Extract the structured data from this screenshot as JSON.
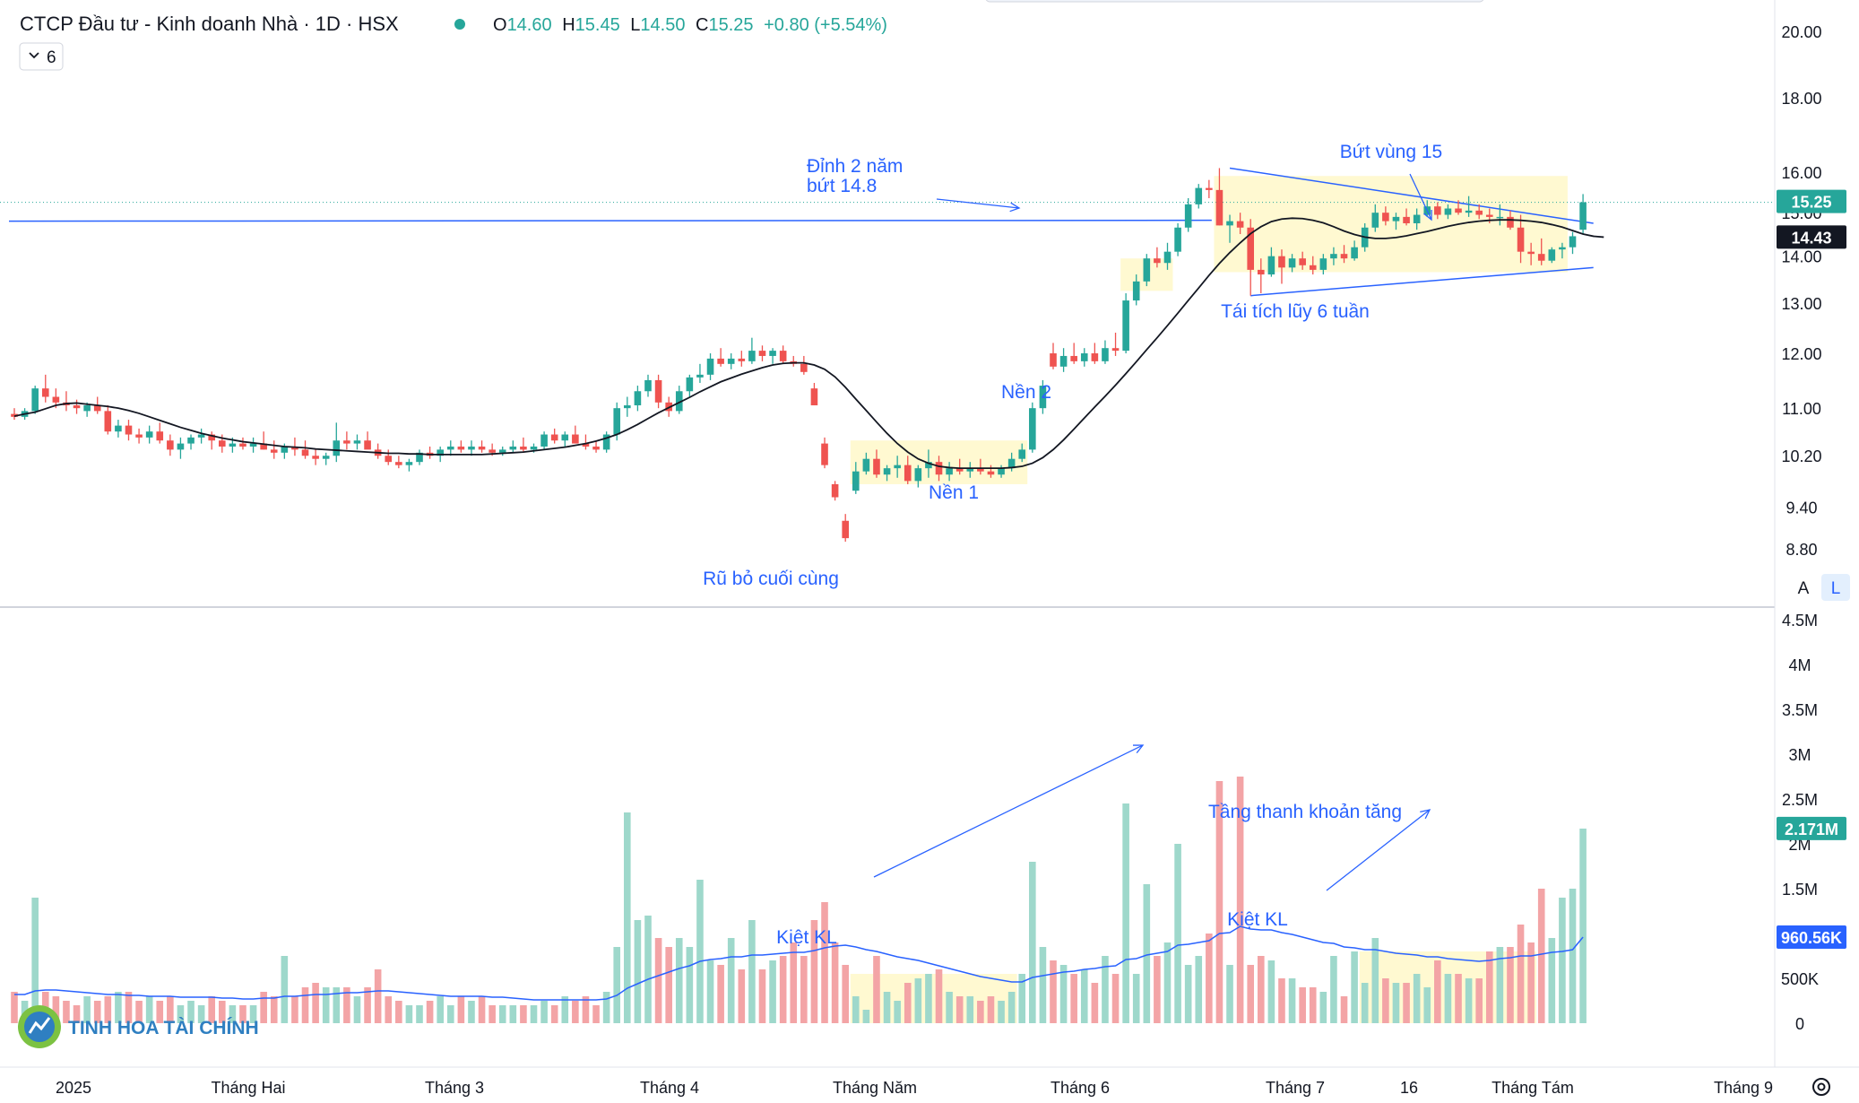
{
  "header": {
    "title": "CTCP Đầu tư - Kinh doanh Nhà · 1D · HSX",
    "ohlc": {
      "o_label": "O",
      "o": "14.60",
      "h_label": "H",
      "h": "15.45",
      "l_label": "L",
      "l": "14.50",
      "c_label": "C",
      "c": "15.25",
      "change": "+0.80 (+5.54%)"
    },
    "indicator_toggle": "6"
  },
  "colors": {
    "up": "#26a69a",
    "down": "#ef5350",
    "up_vol": "#9ed8cb",
    "down_vol": "#f3a4a6",
    "ma": "#131722",
    "vol_ma": "#2962ff",
    "annotation": "#2962ff",
    "zone": "#fff7c2"
  },
  "chart_data": {
    "type": "candlestick",
    "symbol": "CTCP Đầu tư - Kinh doanh Nhà",
    "timeframe": "1D",
    "exchange": "HSX",
    "price_scale": "log",
    "price_axis_ticks": [
      "20.00",
      "18.00",
      "16.00",
      "15.00",
      "14.00",
      "13.00",
      "12.00",
      "11.00",
      "10.20",
      "9.40",
      "8.80"
    ],
    "volume_axis_ticks": [
      "4.5M",
      "4M",
      "3.5M",
      "3M",
      "2.5M",
      "2M",
      "1.5M",
      "1M",
      "500K",
      "0"
    ],
    "time_axis_labels": [
      "2025",
      "Tháng Hai",
      "Tháng 3",
      "Tháng 4",
      "Tháng Năm",
      "Tháng 6",
      "Tháng 7",
      "16",
      "Tháng Tám",
      "Tháng 9"
    ],
    "last_price_label": "15.25",
    "ma_value_label": "14.43",
    "volume_last_label": "2.171M",
    "volume_ma_label": "960.56K",
    "scale_buttons": [
      "A",
      "L"
    ],
    "candles": [
      [
        10.9,
        11.0,
        10.8,
        10.85,
        0.35
      ],
      [
        10.85,
        11.0,
        10.8,
        10.95,
        0.25
      ],
      [
        10.95,
        11.4,
        10.9,
        11.35,
        1.4
      ],
      [
        11.35,
        11.6,
        11.1,
        11.2,
        0.35
      ],
      [
        11.2,
        11.35,
        11.0,
        11.1,
        0.3
      ],
      [
        11.1,
        11.3,
        10.95,
        11.05,
        0.25
      ],
      [
        11.05,
        11.15,
        10.9,
        11.0,
        0.2
      ],
      [
        10.95,
        11.1,
        10.85,
        11.05,
        0.3
      ],
      [
        11.05,
        11.2,
        10.9,
        10.95,
        0.25
      ],
      [
        10.95,
        11.05,
        10.55,
        10.6,
        0.3
      ],
      [
        10.6,
        10.8,
        10.5,
        10.7,
        0.35
      ],
      [
        10.7,
        10.8,
        10.45,
        10.55,
        0.35
      ],
      [
        10.55,
        10.65,
        10.4,
        10.5,
        0.25
      ],
      [
        10.5,
        10.7,
        10.4,
        10.6,
        0.3
      ],
      [
        10.6,
        10.75,
        10.4,
        10.45,
        0.25
      ],
      [
        10.45,
        10.55,
        10.2,
        10.3,
        0.3
      ],
      [
        10.3,
        10.5,
        10.15,
        10.4,
        0.2
      ],
      [
        10.4,
        10.55,
        10.3,
        10.5,
        0.25
      ],
      [
        10.5,
        10.65,
        10.4,
        10.55,
        0.2
      ],
      [
        10.55,
        10.6,
        10.3,
        10.45,
        0.3
      ],
      [
        10.45,
        10.55,
        10.25,
        10.35,
        0.25
      ],
      [
        10.35,
        10.5,
        10.25,
        10.4,
        0.2
      ],
      [
        10.4,
        10.5,
        10.3,
        10.35,
        0.2
      ],
      [
        10.35,
        10.5,
        10.25,
        10.4,
        0.2
      ],
      [
        10.4,
        10.6,
        10.3,
        10.3,
        0.35
      ],
      [
        10.3,
        10.45,
        10.15,
        10.25,
        0.3
      ],
      [
        10.25,
        10.4,
        10.15,
        10.35,
        0.75
      ],
      [
        10.35,
        10.5,
        10.2,
        10.3,
        0.3
      ],
      [
        10.3,
        10.45,
        10.15,
        10.2,
        0.4
      ],
      [
        10.2,
        10.3,
        10.05,
        10.15,
        0.45
      ],
      [
        10.15,
        10.25,
        10.05,
        10.2,
        0.4
      ],
      [
        10.2,
        10.75,
        10.1,
        10.45,
        0.4
      ],
      [
        10.45,
        10.6,
        10.3,
        10.4,
        0.4
      ],
      [
        10.4,
        10.55,
        10.3,
        10.45,
        0.3
      ],
      [
        10.45,
        10.6,
        10.35,
        10.3,
        0.4
      ],
      [
        10.3,
        10.4,
        10.15,
        10.2,
        0.6
      ],
      [
        10.2,
        10.3,
        10.05,
        10.1,
        0.3
      ],
      [
        10.1,
        10.2,
        10.0,
        10.05,
        0.25
      ],
      [
        10.05,
        10.15,
        9.95,
        10.1,
        0.2
      ],
      [
        10.1,
        10.3,
        10.05,
        10.25,
        0.2
      ],
      [
        10.25,
        10.35,
        10.15,
        10.2,
        0.25
      ],
      [
        10.2,
        10.35,
        10.1,
        10.3,
        0.3
      ],
      [
        10.3,
        10.45,
        10.2,
        10.35,
        0.2
      ],
      [
        10.35,
        10.45,
        10.25,
        10.3,
        0.3
      ],
      [
        10.3,
        10.45,
        10.2,
        10.35,
        0.25
      ],
      [
        10.35,
        10.45,
        10.25,
        10.3,
        0.3
      ],
      [
        10.3,
        10.4,
        10.2,
        10.25,
        0.2
      ],
      [
        10.25,
        10.35,
        10.2,
        10.3,
        0.2
      ],
      [
        10.3,
        10.45,
        10.25,
        10.35,
        0.2
      ],
      [
        10.35,
        10.5,
        10.25,
        10.3,
        0.2
      ],
      [
        10.3,
        10.4,
        10.25,
        10.35,
        0.2
      ],
      [
        10.35,
        10.6,
        10.3,
        10.55,
        0.25
      ],
      [
        10.55,
        10.65,
        10.4,
        10.45,
        0.2
      ],
      [
        10.45,
        10.6,
        10.35,
        10.55,
        0.3
      ],
      [
        10.55,
        10.7,
        10.45,
        10.4,
        0.25
      ],
      [
        10.4,
        10.55,
        10.3,
        10.35,
        0.3
      ],
      [
        10.35,
        10.45,
        10.25,
        10.3,
        0.2
      ],
      [
        10.3,
        10.6,
        10.25,
        10.55,
        0.35
      ],
      [
        10.55,
        11.1,
        10.45,
        11.0,
        0.85
      ],
      [
        11.0,
        11.2,
        10.85,
        11.05,
        2.35
      ],
      [
        11.05,
        11.4,
        10.95,
        11.3,
        1.15
      ],
      [
        11.3,
        11.6,
        11.2,
        11.5,
        1.2
      ],
      [
        11.5,
        11.6,
        11.0,
        11.1,
        0.95
      ],
      [
        11.1,
        11.2,
        10.85,
        10.95,
        0.85
      ],
      [
        10.95,
        11.4,
        10.9,
        11.3,
        0.95
      ],
      [
        11.3,
        11.6,
        11.2,
        11.55,
        0.85
      ],
      [
        11.55,
        11.8,
        11.45,
        11.6,
        1.6
      ],
      [
        11.6,
        12.0,
        11.5,
        11.9,
        0.7
      ],
      [
        11.9,
        12.1,
        11.75,
        11.8,
        0.65
      ],
      [
        11.8,
        12.0,
        11.7,
        11.9,
        0.95
      ],
      [
        11.9,
        12.05,
        11.75,
        11.85,
        0.6
      ],
      [
        11.85,
        12.3,
        11.8,
        12.05,
        1.15
      ],
      [
        12.05,
        12.15,
        11.85,
        11.95,
        0.6
      ],
      [
        11.95,
        12.1,
        11.8,
        12.05,
        0.7
      ],
      [
        12.05,
        12.15,
        11.8,
        11.85,
        0.75
      ],
      [
        11.85,
        11.95,
        11.75,
        11.8,
        0.9
      ],
      [
        11.8,
        11.95,
        11.6,
        11.65,
        0.75
      ],
      [
        11.35,
        11.45,
        11.05,
        11.05,
        1.15
      ],
      [
        10.4,
        10.5,
        10.0,
        10.05,
        1.35
      ],
      [
        9.75,
        9.8,
        9.5,
        9.55,
        0.9
      ],
      [
        9.2,
        9.3,
        8.9,
        8.95,
        0.65
      ],
      [
        9.65,
        10.1,
        9.6,
        9.95,
        0.3
      ],
      [
        9.95,
        10.25,
        9.9,
        10.15,
        0.15
      ],
      [
        10.15,
        10.3,
        9.85,
        9.9,
        0.75
      ],
      [
        9.9,
        10.05,
        9.8,
        10.0,
        0.35
      ],
      [
        10.0,
        10.2,
        9.85,
        10.05,
        0.25
      ],
      [
        10.05,
        10.2,
        9.75,
        9.8,
        0.45
      ],
      [
        9.8,
        10.05,
        9.7,
        10.0,
        0.5
      ],
      [
        10.0,
        10.3,
        9.85,
        10.1,
        0.55
      ],
      [
        10.1,
        10.2,
        9.8,
        9.9,
        0.6
      ],
      [
        9.9,
        10.1,
        9.8,
        10.0,
        0.35
      ],
      [
        10.0,
        10.15,
        9.9,
        9.95,
        0.3
      ],
      [
        9.95,
        10.1,
        9.85,
        10.0,
        0.3
      ],
      [
        10.0,
        10.15,
        9.9,
        9.95,
        0.25
      ],
      [
        9.95,
        10.05,
        9.85,
        9.9,
        0.3
      ],
      [
        9.9,
        10.05,
        9.85,
        10.0,
        0.25
      ],
      [
        10.0,
        10.25,
        9.95,
        10.15,
        0.35
      ],
      [
        10.15,
        10.4,
        10.1,
        10.3,
        0.55
      ],
      [
        10.3,
        11.1,
        10.25,
        11.0,
        1.8
      ],
      [
        11.0,
        11.5,
        10.9,
        11.4,
        0.85
      ],
      [
        12.0,
        12.2,
        11.7,
        11.75,
        0.7
      ],
      [
        11.75,
        12.1,
        11.65,
        11.95,
        0.65
      ],
      [
        11.95,
        12.2,
        11.8,
        11.85,
        0.55
      ],
      [
        11.85,
        12.1,
        11.75,
        12.0,
        0.6
      ],
      [
        12.0,
        12.2,
        11.8,
        11.85,
        0.45
      ],
      [
        11.85,
        12.25,
        11.8,
        12.1,
        0.75
      ],
      [
        12.1,
        12.4,
        11.95,
        12.05,
        0.55
      ],
      [
        12.05,
        13.2,
        12.0,
        13.05,
        2.45
      ],
      [
        13.05,
        13.6,
        12.95,
        13.45,
        0.55
      ],
      [
        13.45,
        14.05,
        13.35,
        13.95,
        1.55
      ],
      [
        13.95,
        14.2,
        13.75,
        13.85,
        0.75
      ],
      [
        13.85,
        14.3,
        13.7,
        14.1,
        0.9
      ],
      [
        14.1,
        14.75,
        14.0,
        14.65,
        2.0
      ],
      [
        14.65,
        15.35,
        14.55,
        15.2,
        0.65
      ],
      [
        15.2,
        15.7,
        15.1,
        15.6,
        0.75
      ],
      [
        15.6,
        15.8,
        15.35,
        15.55,
        1.0
      ],
      [
        15.55,
        16.1,
        14.7,
        14.7,
        2.7
      ],
      [
        14.7,
        14.95,
        14.3,
        14.8,
        0.65
      ],
      [
        14.8,
        15.0,
        14.5,
        14.65,
        2.75
      ],
      [
        14.65,
        14.85,
        13.15,
        13.7,
        0.65
      ],
      [
        13.7,
        13.95,
        13.2,
        13.6,
        0.75
      ],
      [
        13.6,
        14.2,
        13.55,
        14.0,
        0.7
      ],
      [
        14.0,
        14.15,
        13.4,
        13.75,
        0.5
      ],
      [
        13.75,
        14.05,
        13.65,
        13.95,
        0.5
      ],
      [
        13.95,
        14.1,
        13.7,
        13.8,
        0.4
      ],
      [
        13.8,
        14.0,
        13.6,
        13.7,
        0.4
      ],
      [
        13.7,
        14.05,
        13.6,
        13.95,
        0.35
      ],
      [
        13.95,
        14.2,
        13.8,
        14.05,
        0.75
      ],
      [
        14.05,
        14.25,
        13.85,
        13.95,
        0.3
      ],
      [
        13.95,
        14.35,
        13.9,
        14.2,
        0.8
      ],
      [
        14.2,
        14.75,
        14.1,
        14.65,
        0.45
      ],
      [
        14.65,
        15.2,
        14.55,
        15.0,
        0.95
      ],
      [
        15.0,
        15.15,
        14.7,
        14.8,
        0.5
      ],
      [
        14.8,
        15.0,
        14.6,
        14.9,
        0.45
      ],
      [
        14.9,
        15.1,
        14.7,
        14.75,
        0.45
      ],
      [
        14.75,
        15.1,
        14.6,
        14.95,
        0.55
      ],
      [
        14.95,
        15.3,
        14.9,
        15.15,
        0.4
      ],
      [
        15.15,
        15.25,
        14.85,
        14.95,
        0.7
      ],
      [
        14.95,
        15.2,
        14.85,
        15.1,
        0.55
      ],
      [
        15.1,
        15.3,
        14.95,
        15.0,
        0.55
      ],
      [
        15.0,
        15.4,
        14.9,
        15.05,
        0.5
      ],
      [
        15.05,
        15.2,
        14.85,
        14.95,
        0.5
      ],
      [
        14.95,
        15.1,
        14.75,
        14.9,
        0.8
      ],
      [
        14.9,
        15.2,
        14.7,
        14.9,
        0.85
      ],
      [
        14.9,
        15.05,
        14.6,
        14.65,
        0.85
      ],
      [
        14.65,
        14.95,
        13.85,
        14.1,
        1.1
      ],
      [
        14.1,
        14.3,
        13.8,
        14.05,
        0.9
      ],
      [
        14.05,
        14.4,
        13.8,
        13.9,
        1.5
      ],
      [
        13.9,
        14.2,
        13.85,
        14.15,
        0.95
      ],
      [
        14.15,
        14.3,
        13.95,
        14.2,
        1.4
      ],
      [
        14.2,
        14.55,
        14.05,
        14.45,
        1.5
      ],
      [
        14.6,
        15.45,
        14.5,
        15.25,
        2.17
      ]
    ],
    "ma_values": [
      10.86,
      10.9,
      10.93,
      10.99,
      11.05,
      11.08,
      11.09,
      11.07,
      11.05,
      11.03,
      11.0,
      10.96,
      10.91,
      10.85,
      10.79,
      10.73,
      10.67,
      10.62,
      10.57,
      10.53,
      10.49,
      10.46,
      10.43,
      10.41,
      10.39,
      10.37,
      10.35,
      10.34,
      10.33,
      10.31,
      10.3,
      10.29,
      10.28,
      10.27,
      10.26,
      10.25,
      10.24,
      10.24,
      10.23,
      10.23,
      10.22,
      10.22,
      10.22,
      10.22,
      10.22,
      10.22,
      10.23,
      10.24,
      10.25,
      10.26,
      10.28,
      10.3,
      10.32,
      10.34,
      10.37,
      10.4,
      10.44,
      10.49,
      10.55,
      10.63,
      10.72,
      10.82,
      10.92,
      11.01,
      11.1,
      11.19,
      11.29,
      11.38,
      11.47,
      11.54,
      11.61,
      11.67,
      11.73,
      11.78,
      11.81,
      11.82,
      11.82,
      11.78,
      11.7,
      11.56,
      11.37,
      11.16,
      10.96,
      10.76,
      10.57,
      10.4,
      10.26,
      10.15,
      10.08,
      10.03,
      10.01,
      10.0,
      10.0,
      10.0,
      10.0,
      10.0,
      10.01,
      10.03,
      10.08,
      10.17,
      10.3,
      10.46,
      10.64,
      10.83,
      11.02,
      11.21,
      11.41,
      11.62,
      11.84,
      12.07,
      12.3,
      12.54,
      12.79,
      13.05,
      13.31,
      13.58,
      13.84,
      14.08,
      14.3,
      14.51,
      14.67,
      14.79,
      14.85,
      14.87,
      14.86,
      14.82,
      14.76,
      14.67,
      14.57,
      14.49,
      14.43,
      14.4,
      14.4,
      14.42,
      14.46,
      14.51,
      14.56,
      14.62,
      14.68,
      14.73,
      14.77,
      14.8,
      14.82,
      14.83,
      14.83,
      14.82,
      14.8,
      14.77,
      14.72,
      14.66,
      14.58,
      14.5,
      14.45,
      14.43
    ],
    "volume_ma_values": [
      0.32,
      0.32,
      0.36,
      0.37,
      0.37,
      0.36,
      0.35,
      0.34,
      0.33,
      0.32,
      0.32,
      0.31,
      0.31,
      0.3,
      0.3,
      0.3,
      0.29,
      0.29,
      0.29,
      0.29,
      0.28,
      0.28,
      0.27,
      0.27,
      0.28,
      0.28,
      0.3,
      0.3,
      0.31,
      0.32,
      0.32,
      0.33,
      0.34,
      0.34,
      0.35,
      0.36,
      0.36,
      0.35,
      0.34,
      0.33,
      0.32,
      0.31,
      0.3,
      0.3,
      0.3,
      0.3,
      0.29,
      0.29,
      0.28,
      0.27,
      0.26,
      0.26,
      0.26,
      0.26,
      0.26,
      0.26,
      0.26,
      0.27,
      0.31,
      0.39,
      0.44,
      0.49,
      0.53,
      0.57,
      0.61,
      0.64,
      0.69,
      0.71,
      0.72,
      0.74,
      0.74,
      0.76,
      0.76,
      0.77,
      0.78,
      0.79,
      0.79,
      0.81,
      0.84,
      0.86,
      0.87,
      0.85,
      0.82,
      0.8,
      0.77,
      0.74,
      0.72,
      0.7,
      0.67,
      0.64,
      0.61,
      0.58,
      0.55,
      0.52,
      0.5,
      0.48,
      0.46,
      0.46,
      0.51,
      0.53,
      0.55,
      0.57,
      0.58,
      0.6,
      0.61,
      0.63,
      0.64,
      0.71,
      0.72,
      0.76,
      0.78,
      0.8,
      0.87,
      0.88,
      0.9,
      0.92,
      1.0,
      1.01,
      1.08,
      1.05,
      1.04,
      1.04,
      1.01,
      0.99,
      0.96,
      0.93,
      0.9,
      0.89,
      0.85,
      0.84,
      0.82,
      0.82,
      0.8,
      0.78,
      0.77,
      0.76,
      0.74,
      0.74,
      0.72,
      0.71,
      0.7,
      0.69,
      0.7,
      0.72,
      0.73,
      0.75,
      0.75,
      0.77,
      0.79,
      0.8,
      0.82,
      0.96
    ],
    "annotations": [
      {
        "id": "dinh-2-nam",
        "lines": [
          "Đỉnh 2 năm",
          "bứt 14.8"
        ]
      },
      {
        "id": "but-vung-15",
        "lines": [
          "Bứt vùng 15"
        ]
      },
      {
        "id": "tai-tich-luy",
        "lines": [
          "Tái tích lũy 6 tuần"
        ]
      },
      {
        "id": "nen-2",
        "lines": [
          "Nền 2"
        ]
      },
      {
        "id": "nen-1",
        "lines": [
          "Nền 1"
        ]
      },
      {
        "id": "ru-bo",
        "lines": [
          "Rũ bỏ cuối cùng"
        ]
      },
      {
        "id": "kiet-kl-1",
        "lines": [
          "Kiệt KL"
        ]
      },
      {
        "id": "kiet-kl-2",
        "lines": [
          "Kiệt KL"
        ]
      },
      {
        "id": "tang-thanh-khoan",
        "lines": [
          "Tầng thanh khoản tăng"
        ]
      }
    ]
  },
  "watermark": {
    "text": "TINH HOA TÀI CHÍNH"
  }
}
